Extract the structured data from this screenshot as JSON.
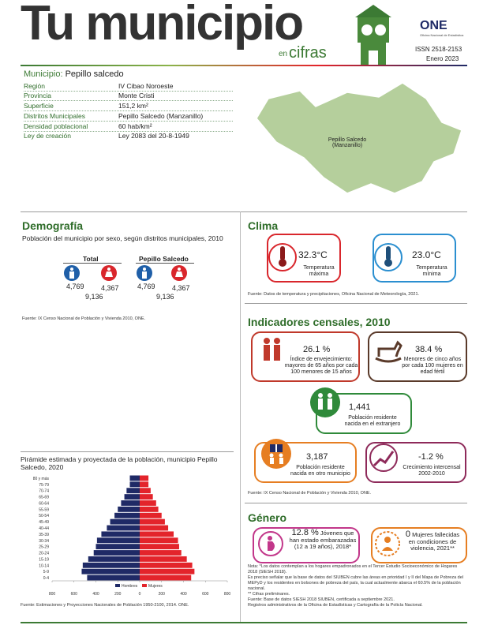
{
  "header": {
    "title": "Tu municipio",
    "title_en": "en",
    "title_cifras": "cifras",
    "org": "ONE",
    "org_name": "Oficina Nacional de Estadística",
    "issn": "ISSN  2518-2153",
    "date": "Enero 2023"
  },
  "municipio": {
    "label": "Municipio:",
    "name": "Pepillo salcedo"
  },
  "info": {
    "rows": [
      [
        "Región",
        "IV Cibao Noroeste"
      ],
      [
        "Provincia",
        "Monte Cristi"
      ],
      [
        "Superficie",
        "151,2 km²"
      ],
      [
        "Distritos Municipales",
        "Pepillo Salcedo (Manzanillo)"
      ],
      [
        "Densidad poblacional",
        "60 hab/km²"
      ],
      [
        "Ley de creación",
        "Ley 2083 del 20-8-1949"
      ]
    ]
  },
  "map": {
    "label": [
      "Pepillo Salcedo",
      "(Manzanillo)"
    ]
  },
  "demografia": {
    "title": "Demografía",
    "subtitle": "Población del municipio por sexo, según distritos municipales, 2010",
    "groups": [
      {
        "name": "Total",
        "hombres": "4,769",
        "mujeres": "4,367",
        "total": "9,136"
      },
      {
        "name": "Pepillo Salcedo",
        "hombres": "4,769",
        "mujeres": "4,367",
        "total": "9,136"
      }
    ],
    "source": "Fuente: IX Censo Nacional de Población y Vivienda 2010, ONE."
  },
  "clima": {
    "title": "Clima",
    "items": [
      {
        "value": "32.3°C",
        "label": [
          "Temperatura",
          "máxima"
        ]
      },
      {
        "value": "23.0°C",
        "label": [
          "Temperatura",
          "mínima"
        ]
      }
    ],
    "source": "Fuente: Datos de temperatura y precipitaciones, Oficina Nacional de Meteorología, 2021."
  },
  "indicadores": {
    "title": "Indicadores censales, 2010",
    "items": [
      {
        "value": "26.1 %",
        "text": [
          "Índice de envejecimiento:",
          "mayores de 65 años por cada",
          "100 menores de 15 años"
        ]
      },
      {
        "value": "38.4 %",
        "text": [
          "Menores de cinco años",
          "por cada 100 mujeres en",
          "edad fértil"
        ]
      },
      {
        "value": "1,441",
        "text": [
          "Población residente",
          "nacida en el extranjero"
        ]
      },
      {
        "value": "3,187",
        "text": [
          "Población residente",
          "nacida en otro municipio"
        ]
      },
      {
        "value": "-1.2 %",
        "text": [
          "Crecimiento intercensal",
          "2002-2010"
        ]
      }
    ],
    "source": "Fuente: IX Censo Nacional de Población y Vivienda 2010, ONE."
  },
  "genero": {
    "title": "Género",
    "items": [
      {
        "value": "12.8 %",
        "text": [
          "Jóvenes que",
          "han estado embarazadas",
          "(12 a 19 años), 2018*"
        ]
      },
      {
        "value": "0",
        "text": [
          "Mujeres fallecidas",
          "en condiciones de",
          "violencia, 2021**"
        ]
      }
    ],
    "notes": [
      "Nota: *Los datos contemplan a los hogares empadronados en el Tercer Estudio Socioeconómico de Hogares 2018 (SIESH 2018).",
      "Es preciso señalar que la base de datos del SIUBEN cubre las áreas en prioridad I y II del Mapa de Pobreza del MEPyD y los residentes en bolsones de pobreza del país, la cual actualmente abarca el 60.5% de la población nacional.",
      "** Cifras preliminares.",
      "Fuente: Base de datos SIESH 2018 SIUBEN, certificada a septiembre 2021.",
      "Registros administrativos de la Oficina de Estadísticas y Cartografía de la Policía Nacional."
    ]
  },
  "pyramid": {
    "type": "bar",
    "orientation": "horizontal",
    "title": "Pirámide estimada y proyectada de la población, municipio Pepillo Salcedo, 2020",
    "categories": [
      "80 y más",
      "75-79",
      "70-74",
      "65-69",
      "60-64",
      "55-59",
      "50-54",
      "45-49",
      "40-44",
      "35-39",
      "30-34",
      "25-29",
      "20-24",
      "15-19",
      "10-14",
      "5-9",
      "0-4"
    ],
    "series": [
      {
        "name": "Hombres",
        "color": "#1f2a66",
        "values": [
          -90,
          -90,
          -120,
          -140,
          -170,
          -200,
          -230,
          -270,
          -300,
          -350,
          -390,
          -400,
          -420,
          -470,
          -520,
          -530,
          -480
        ]
      },
      {
        "name": "Mujeres",
        "color": "#e3242b",
        "values": [
          80,
          80,
          100,
          120,
          150,
          170,
          200,
          230,
          260,
          310,
          350,
          360,
          380,
          430,
          480,
          500,
          470
        ]
      }
    ],
    "xlim": [
      -800,
      800
    ],
    "xticks": [
      {
        "value": -800,
        "label": "800"
      },
      {
        "value": -600,
        "label": "600"
      },
      {
        "value": -400,
        "label": "400"
      },
      {
        "value": -200,
        "label": "200"
      },
      0,
      200,
      400,
      600,
      800
    ],
    "source": "Fuente: Estimaciones y Proyecciones Nacionales de Población 1950-2100, 2014. ONE."
  }
}
